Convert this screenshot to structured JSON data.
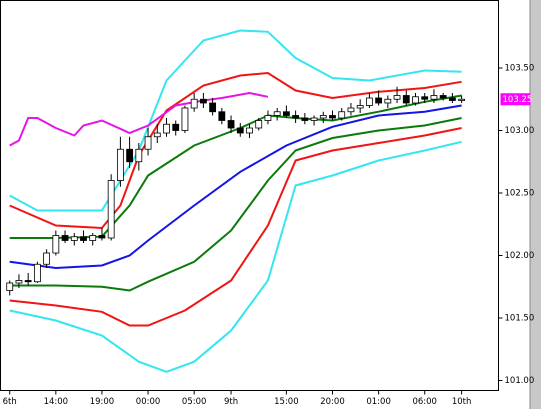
{
  "chart_data": {
    "type": "candlestick",
    "xlim": [
      -1,
      53
    ],
    "ylim": [
      100.92,
      104.04
    ],
    "xticks": [
      {
        "value": 0,
        "label": "6th"
      },
      {
        "value": 5,
        "label": "14:00"
      },
      {
        "value": 10,
        "label": "19:00"
      },
      {
        "value": 15,
        "label": "00:00"
      },
      {
        "value": 20,
        "label": "05:00"
      },
      {
        "value": 24,
        "label": "9th"
      },
      {
        "value": 30,
        "label": "15:00"
      },
      {
        "value": 35,
        "label": "20:00"
      },
      {
        "value": 40,
        "label": "01:00"
      },
      {
        "value": 45,
        "label": "06:00"
      },
      {
        "value": 49,
        "label": "10th"
      }
    ],
    "yticks": [
      {
        "value": 101,
        "label": "101.00"
      },
      {
        "value": 101.5,
        "label": "101.50"
      },
      {
        "value": 102,
        "label": "102.00"
      },
      {
        "value": 102.5,
        "label": "102.50"
      },
      {
        "value": 103,
        "label": "103.00"
      },
      {
        "value": 103.5,
        "label": "103.50"
      }
    ],
    "last_price": {
      "value": 103.25,
      "label": "103.25",
      "color": "#ff00ff"
    },
    "series": [
      {
        "color": "#33e6f0",
        "x": [
          0,
          3,
          10,
          14,
          17,
          21,
          25,
          28,
          31,
          35,
          39,
          45,
          49
        ],
        "values": [
          102.48,
          102.36,
          102.36,
          102.84,
          103.4,
          103.72,
          103.8,
          103.79,
          103.58,
          103.42,
          103.4,
          103.48,
          103.47
        ]
      },
      {
        "color": "#f01414",
        "x": [
          0,
          5,
          10,
          12,
          14,
          17,
          21,
          25,
          28,
          31,
          35,
          40,
          45,
          49
        ],
        "values": [
          102.4,
          102.24,
          102.22,
          102.4,
          102.8,
          103.16,
          103.36,
          103.44,
          103.46,
          103.32,
          103.26,
          103.31,
          103.34,
          103.39
        ]
      },
      {
        "color": "#0a7a0a",
        "x": [
          0,
          5,
          10,
          13,
          15,
          20,
          25,
          28,
          31,
          35,
          40,
          45,
          49
        ],
        "values": [
          102.14,
          102.14,
          102.15,
          102.4,
          102.64,
          102.88,
          103.02,
          103.12,
          103.1,
          103.08,
          103.15,
          103.23,
          103.28
        ]
      },
      {
        "color": "#1414e6",
        "x": [
          0,
          5,
          10,
          13,
          15,
          20,
          25,
          30,
          35,
          40,
          45,
          49
        ],
        "values": [
          101.95,
          101.9,
          101.92,
          102.0,
          102.12,
          102.4,
          102.67,
          102.88,
          103.03,
          103.12,
          103.15,
          103.2
        ]
      },
      {
        "color": "#0a7a0a",
        "x": [
          0,
          5,
          10,
          13,
          15,
          20,
          24,
          28,
          31,
          35,
          40,
          45,
          49
        ],
        "values": [
          101.76,
          101.76,
          101.75,
          101.72,
          101.79,
          101.95,
          102.2,
          102.6,
          102.84,
          102.94,
          103.0,
          103.04,
          103.1
        ]
      },
      {
        "color": "#f01414",
        "x": [
          0,
          5,
          10,
          13,
          15,
          19,
          24,
          28,
          31,
          35,
          40,
          45,
          49
        ],
        "values": [
          101.64,
          101.6,
          101.55,
          101.44,
          101.44,
          101.56,
          101.8,
          102.24,
          102.76,
          102.84,
          102.9,
          102.96,
          103.02
        ]
      },
      {
        "color": "#33e6f0",
        "x": [
          0,
          5,
          10,
          14,
          17,
          20,
          24,
          28,
          31,
          35,
          40,
          45,
          49
        ],
        "values": [
          101.56,
          101.48,
          101.36,
          101.15,
          101.07,
          101.15,
          101.4,
          101.8,
          102.56,
          102.64,
          102.76,
          102.84,
          102.91
        ]
      },
      {
        "color": "#e614e6",
        "x": [
          0,
          1,
          2,
          3,
          5,
          7,
          8,
          10,
          13,
          15,
          18,
          21,
          23,
          26,
          28
        ],
        "values": [
          102.88,
          102.92,
          103.1,
          103.1,
          103.02,
          102.96,
          103.04,
          103.08,
          102.98,
          103.04,
          103.2,
          103.24,
          103.26,
          103.3,
          103.27
        ]
      }
    ],
    "candles": {
      "open": [
        101.72,
        101.78,
        101.8,
        101.79,
        101.93,
        102.02,
        102.16,
        102.12,
        102.15,
        102.12,
        102.16,
        102.14,
        102.6,
        102.85,
        102.75,
        102.85,
        102.95,
        102.98,
        103.05,
        103.0,
        103.18,
        103.25,
        103.22,
        103.15,
        103.08,
        103.02,
        102.98,
        103.02,
        103.08,
        103.12,
        103.15,
        103.12,
        103.1,
        103.08,
        103.1,
        103.12,
        103.1,
        103.15,
        103.18,
        103.2,
        103.26,
        103.22,
        103.25,
        103.28,
        103.22,
        103.27,
        103.25,
        103.28,
        103.26,
        103.24
      ],
      "high": [
        101.8,
        101.85,
        101.86,
        101.95,
        102.05,
        102.2,
        102.2,
        102.18,
        102.2,
        102.18,
        102.22,
        102.65,
        102.95,
        102.95,
        102.9,
        103.02,
        103.05,
        103.1,
        103.08,
        103.2,
        103.3,
        103.3,
        103.26,
        103.18,
        103.12,
        103.06,
        103.05,
        103.1,
        103.16,
        103.18,
        103.2,
        103.16,
        103.14,
        103.12,
        103.15,
        103.16,
        103.18,
        103.22,
        103.25,
        103.3,
        103.32,
        103.28,
        103.35,
        103.32,
        103.3,
        103.3,
        103.33,
        103.3,
        103.3,
        103.28
      ],
      "low": [
        101.68,
        101.74,
        101.76,
        101.78,
        101.9,
        102.0,
        102.1,
        102.08,
        102.1,
        102.08,
        102.12,
        102.12,
        102.55,
        102.7,
        102.68,
        102.8,
        102.9,
        102.95,
        102.96,
        102.98,
        103.15,
        103.18,
        103.12,
        103.05,
        102.98,
        102.95,
        102.94,
        103.0,
        103.05,
        103.08,
        103.1,
        103.06,
        103.05,
        103.04,
        103.06,
        103.08,
        103.08,
        103.12,
        103.14,
        103.18,
        103.2,
        103.18,
        103.22,
        103.2,
        103.2,
        103.22,
        103.22,
        103.24,
        103.22,
        103.22
      ],
      "close": [
        101.78,
        101.8,
        101.79,
        101.93,
        102.02,
        102.16,
        102.12,
        102.15,
        102.12,
        102.16,
        102.14,
        102.6,
        102.85,
        102.75,
        102.85,
        102.95,
        102.98,
        103.05,
        103.0,
        103.18,
        103.25,
        103.22,
        103.15,
        103.08,
        103.02,
        102.98,
        103.02,
        103.08,
        103.12,
        103.15,
        103.12,
        103.1,
        103.08,
        103.1,
        103.12,
        103.1,
        103.15,
        103.18,
        103.2,
        103.26,
        103.22,
        103.25,
        103.28,
        103.22,
        103.27,
        103.25,
        103.28,
        103.26,
        103.24,
        103.25
      ]
    }
  }
}
